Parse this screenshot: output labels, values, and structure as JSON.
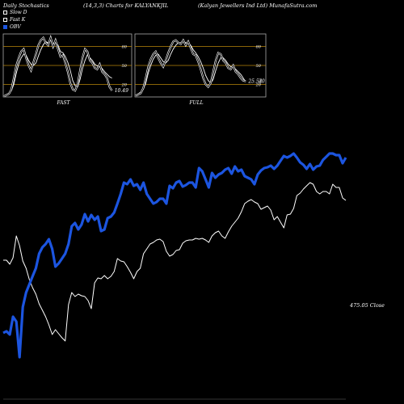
{
  "header": {
    "left": "Daily Stochastics",
    "middle": "(14,3,3) Charts for KALYANKJIL",
    "right": "(Kalyan Jewellers Ind Ltd) MunafaSutra.com"
  },
  "legend": {
    "slow_d": "Slow  D",
    "fast_k": "Fast K",
    "obv": "OBV"
  },
  "colors": {
    "background": "#000000",
    "line": "#ffffff",
    "obv": "#1c55e0",
    "level_lines": "#b8860b",
    "panel_border": "#aaaaaa"
  },
  "chart_data": [
    {
      "type": "line",
      "panel": "FAST",
      "xlabel": "FAST",
      "ylim": [
        0,
        100
      ],
      "levels": [
        "80",
        "50",
        "20"
      ],
      "level_values": [
        80,
        50,
        20
      ],
      "last_label": "10.49",
      "series": [
        {
          "name": "Slow  D",
          "values": [
            2,
            4,
            6,
            10,
            20,
            38,
            52,
            62,
            68,
            66,
            58,
            52,
            50,
            54,
            65,
            75,
            83,
            88,
            86,
            90,
            84,
            88,
            82,
            72,
            70,
            64,
            55,
            42,
            26,
            18,
            16,
            28,
            45,
            58,
            67,
            62,
            58,
            52,
            49,
            50,
            45,
            40,
            36,
            32,
            30
          ]
        },
        {
          "name": "Fast K",
          "values": [
            1,
            3,
            5,
            12,
            30,
            50,
            62,
            72,
            76,
            62,
            50,
            42,
            55,
            68,
            82,
            90,
            94,
            86,
            82,
            94,
            80,
            90,
            76,
            64,
            66,
            54,
            40,
            22,
            12,
            10,
            20,
            42,
            62,
            76,
            72,
            58,
            54,
            46,
            44,
            52,
            40,
            36,
            30,
            16,
            10
          ]
        }
      ]
    },
    {
      "type": "line",
      "panel": "FULL",
      "xlabel": "FULL",
      "ylim": [
        0,
        100
      ],
      "levels": [
        "80",
        "50",
        "20"
      ],
      "level_values": [
        80,
        50,
        20
      ],
      "last_label": "25.54",
      "last_label2": "20",
      "series": [
        {
          "name": "Slow  D",
          "values": [
            3,
            5,
            8,
            12,
            22,
            38,
            50,
            60,
            66,
            68,
            62,
            56,
            54,
            58,
            68,
            76,
            82,
            86,
            86,
            88,
            86,
            86,
            82,
            75,
            70,
            64,
            56,
            46,
            34,
            26,
            22,
            28,
            42,
            54,
            62,
            62,
            58,
            52,
            48,
            48,
            44,
            40,
            36,
            30,
            24
          ]
        },
        {
          "name": "Fast K",
          "values": [
            2,
            4,
            6,
            14,
            30,
            48,
            60,
            68,
            72,
            62,
            54,
            48,
            58,
            70,
            80,
            88,
            90,
            86,
            84,
            90,
            82,
            88,
            78,
            68,
            66,
            56,
            44,
            30,
            20,
            16,
            22,
            40,
            58,
            70,
            68,
            58,
            54,
            46,
            44,
            50,
            40,
            36,
            30,
            26,
            25
          ]
        }
      ]
    },
    {
      "type": "line",
      "panel": "main",
      "last_label": "475.05 Close",
      "series": [
        {
          "name": "Close",
          "values": [
            322,
            322,
            327,
            319,
            292,
            304,
            323,
            332,
            346,
            356,
            364,
            376,
            384,
            392,
            402,
            414,
            408,
            413,
            418,
            422,
            377,
            362,
            367,
            364,
            366,
            367,
            372,
            382,
            350,
            344,
            345,
            341,
            345,
            342,
            336,
            320,
            323,
            324,
            330,
            337,
            345,
            336,
            332,
            314,
            308,
            302,
            300,
            297,
            296,
            299,
            311,
            317,
            315,
            310,
            309,
            301,
            298,
            297,
            297,
            295,
            296,
            295,
            297,
            300,
            292,
            288,
            286,
            292,
            295,
            287,
            280,
            275,
            270,
            262,
            252,
            249,
            247,
            250,
            252,
            259,
            257,
            255,
            260,
            272,
            268,
            275,
            282,
            266,
            265,
            258,
            242,
            239,
            234,
            230,
            226,
            228,
            237,
            240,
            237,
            237,
            240,
            228,
            232,
            232,
            245,
            248
          ]
        },
        {
          "name": "OBV",
          "values": [
            412,
            410,
            414,
            392,
            398,
            442,
            380,
            362,
            352,
            342,
            332,
            314,
            306,
            302,
            296,
            308,
            330,
            326,
            320,
            314,
            302,
            280,
            276,
            284,
            278,
            265,
            274,
            266,
            272,
            268,
            286,
            284,
            270,
            268,
            263,
            252,
            240,
            226,
            228,
            222,
            230,
            228,
            235,
            226,
            240,
            246,
            252,
            250,
            246,
            246,
            252,
            230,
            233,
            226,
            224,
            231,
            229,
            226,
            226,
            232,
            208,
            212,
            222,
            232,
            214,
            220,
            216,
            214,
            210,
            208,
            215,
            206,
            212,
            210,
            218,
            220,
            222,
            228,
            216,
            211,
            208,
            207,
            205,
            209,
            205,
            199,
            193,
            195,
            193,
            190,
            195,
            201,
            204,
            209,
            203,
            210,
            206,
            205,
            198,
            194,
            190,
            190,
            192,
            192,
            202,
            195
          ]
        }
      ]
    }
  ]
}
